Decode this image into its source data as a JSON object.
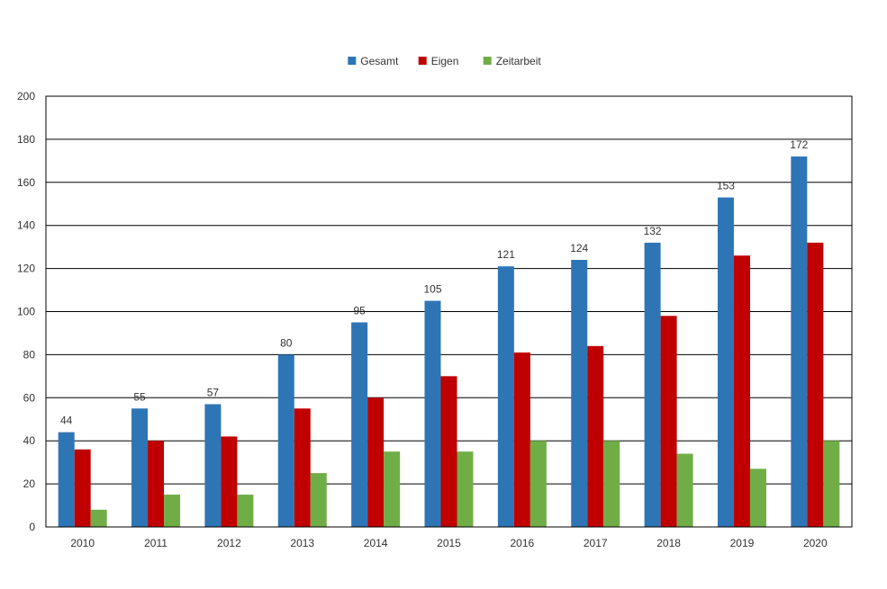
{
  "chart_data": {
    "type": "bar",
    "categories": [
      "2010",
      "2011",
      "2012",
      "2013",
      "2014",
      "2015",
      "2016",
      "2017",
      "2018",
      "2019",
      "2020"
    ],
    "series": [
      {
        "name": "Gesamt",
        "color": "#2e75b6",
        "values": [
          44,
          55,
          57,
          80,
          95,
          105,
          121,
          124,
          132,
          153,
          172
        ],
        "data_labels": true
      },
      {
        "name": "Eigen",
        "color": "#c00000",
        "values": [
          36,
          40,
          42,
          55,
          60,
          70,
          81,
          84,
          98,
          126,
          132
        ],
        "data_labels": false
      },
      {
        "name": "Zeitarbeit",
        "color": "#70ad47",
        "values": [
          8,
          15,
          15,
          25,
          35,
          35,
          40,
          40,
          34,
          27,
          40
        ],
        "data_labels": false
      }
    ],
    "title": "",
    "xlabel": "",
    "ylabel": "",
    "ylim": [
      0,
      200
    ],
    "yticks": [
      0,
      20,
      40,
      60,
      80,
      100,
      120,
      140,
      160,
      180,
      200
    ],
    "grid": true,
    "legend_position": "top-center"
  }
}
